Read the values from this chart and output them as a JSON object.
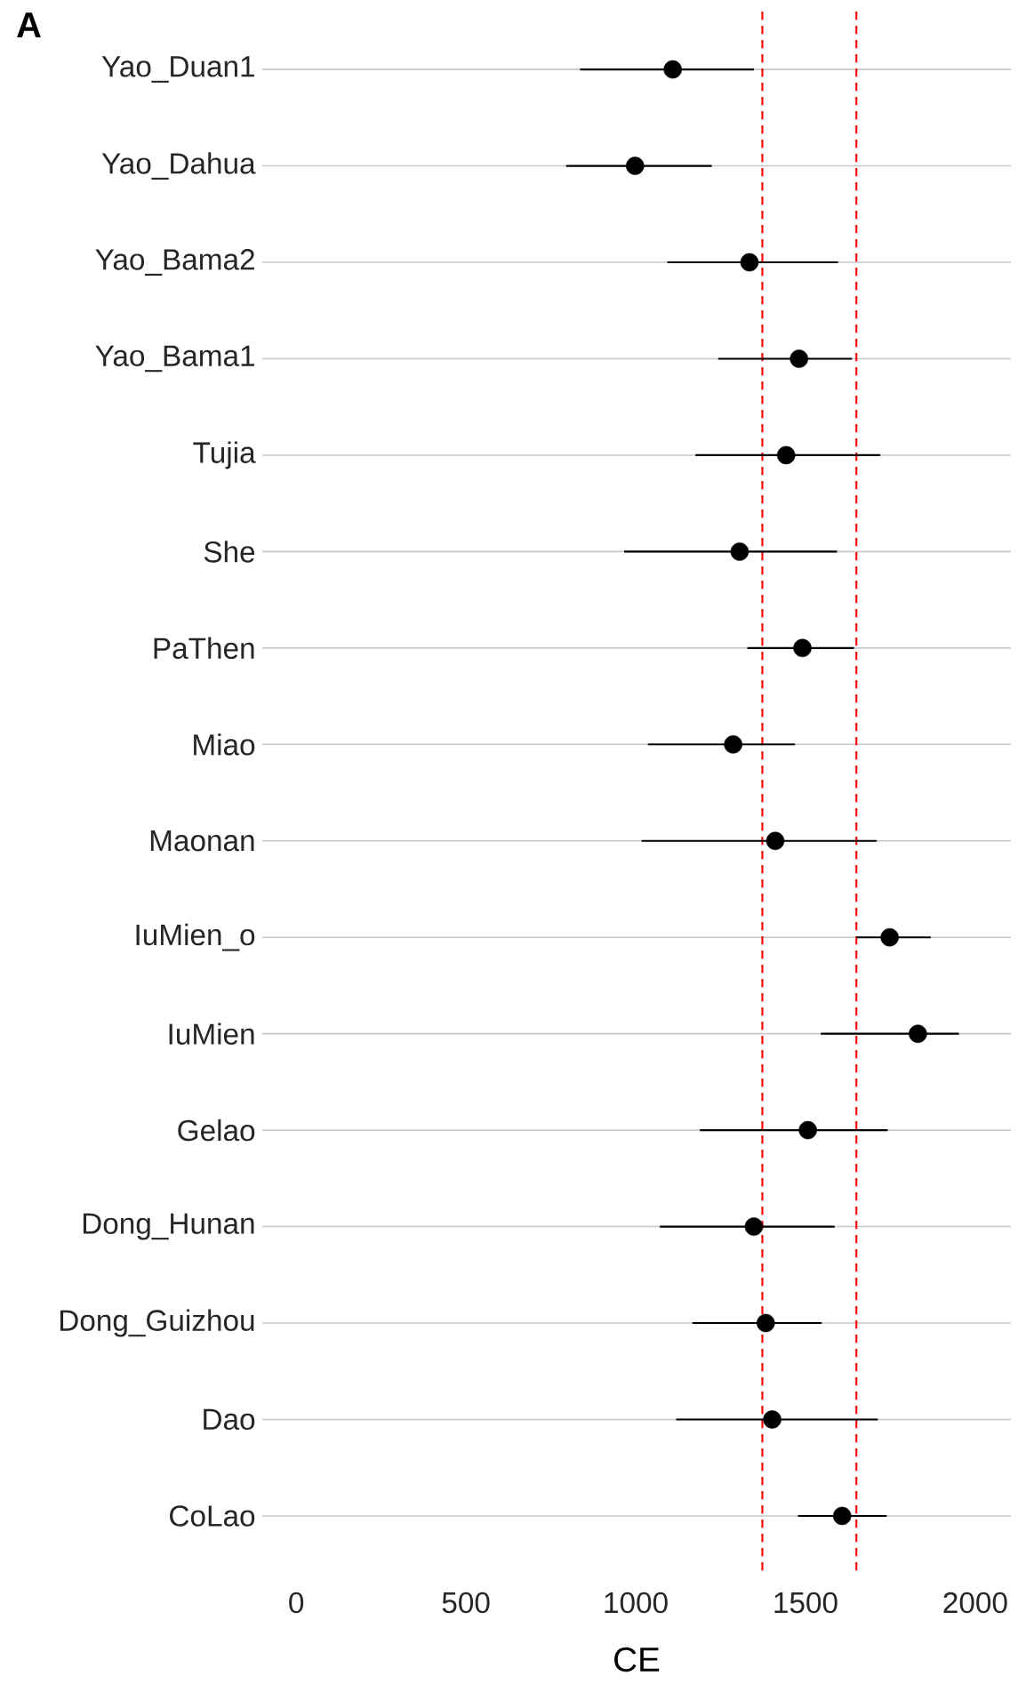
{
  "chart_data": {
    "type": "scatter",
    "orientation": "horizontal",
    "xlabel": "CE",
    "annotations": [
      "A"
    ],
    "categories": [
      "Yao_Duan1",
      "Yao_Dahua",
      "Yao_Bama2",
      "Yao_Bama1",
      "Tujia",
      "She",
      "PaThen",
      "Miao",
      "Maonan",
      "IuMien_o",
      "IuMien",
      "Gelao",
      "Dong_Hunan",
      "Dong_Guizhou",
      "Dao",
      "CoLao"
    ],
    "values": [
      1109,
      998,
      1335,
      1481,
      1443,
      1306,
      1491,
      1287,
      1411,
      1748,
      1831,
      1507,
      1348,
      1383,
      1402,
      1608
    ],
    "errors": [
      [
        836,
        1348
      ],
      [
        795,
        1224
      ],
      [
        1093,
        1596
      ],
      [
        1243,
        1637
      ],
      [
        1176,
        1720
      ],
      [
        966,
        1593
      ],
      [
        1329,
        1643
      ],
      [
        1036,
        1469
      ],
      [
        1017,
        1710
      ],
      [
        1650,
        1869
      ],
      [
        1545,
        1952
      ],
      [
        1189,
        1742
      ],
      [
        1071,
        1586
      ],
      [
        1167,
        1548
      ],
      [
        1119,
        1713
      ],
      [
        1478,
        1739
      ]
    ],
    "color": "#000000",
    "marker": "circle",
    "grid": "y",
    "xlim": [
      -100,
      2105
    ],
    "xticks": [
      0,
      500,
      1000,
      1500,
      2000
    ],
    "ref_lines": [
      {
        "axis": "x",
        "value": 1373,
        "color": "#ff0000",
        "line_style": "dashed"
      },
      {
        "axis": "x",
        "value": 1650,
        "color": "#ff0000",
        "line_style": "dashed"
      }
    ]
  }
}
